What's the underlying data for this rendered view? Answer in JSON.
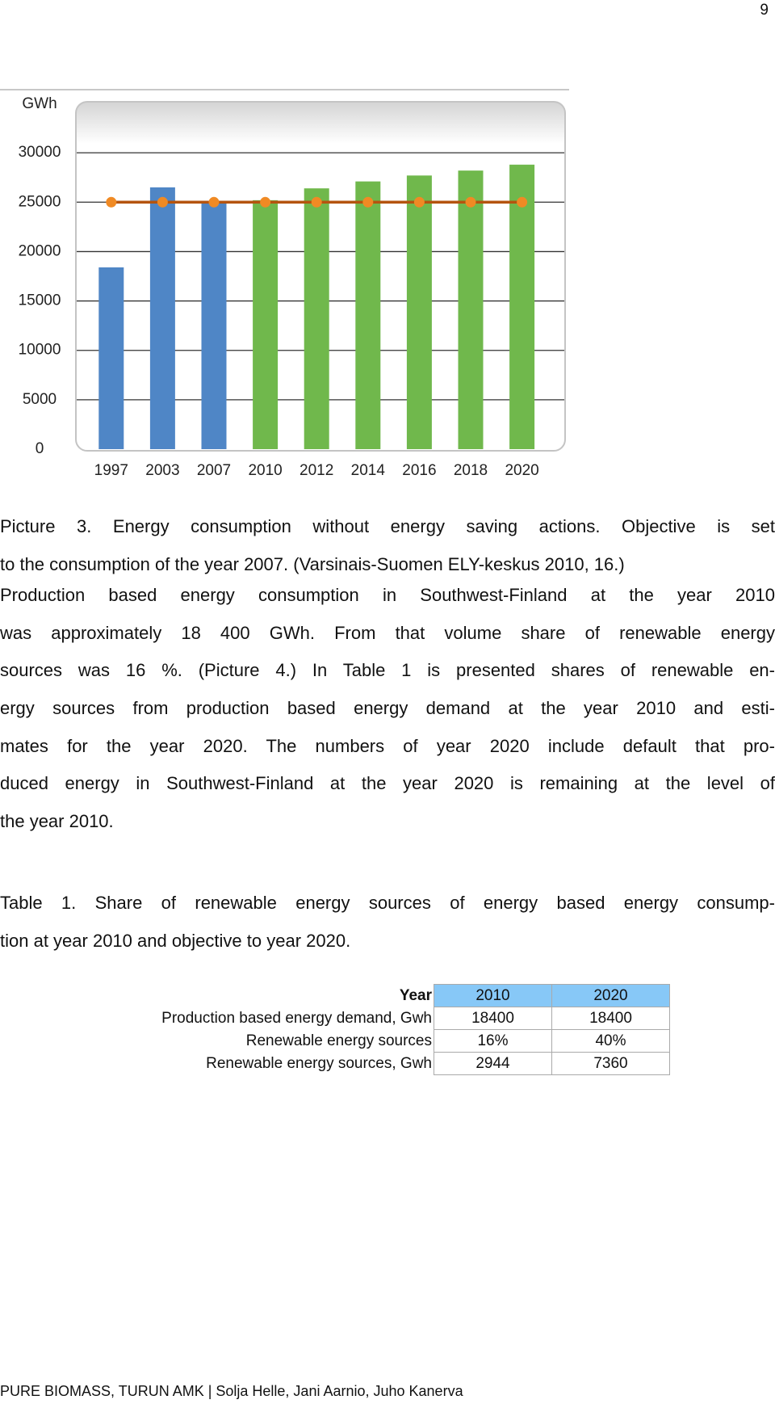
{
  "page_number": "9",
  "chart_data": {
    "type": "bar",
    "y_label": "GWh",
    "categories": [
      "1997",
      "2003",
      "2007",
      "2010",
      "2012",
      "2014",
      "2016",
      "2018",
      "2020"
    ],
    "series": [
      {
        "type": "bar",
        "values": [
          18400,
          26500,
          25000,
          25200,
          26400,
          27100,
          27700,
          28200,
          28800
        ],
        "colors": [
          "#4f86c6",
          "#4f86c6",
          "#4f86c6",
          "#70b84c",
          "#70b84c",
          "#70b84c",
          "#70b84c",
          "#70b84c",
          "#70b84c"
        ]
      },
      {
        "type": "line",
        "color": "#b5540f",
        "marker_color": "#f08a24",
        "values": [
          25000,
          25000,
          25000,
          25000,
          25000,
          25000,
          25000,
          25000,
          25000
        ]
      }
    ],
    "ylim": [
      0,
      35000
    ],
    "yticks": [
      0,
      5000,
      10000,
      15000,
      20000,
      25000,
      30000
    ],
    "grid": true
  },
  "caption": {
    "lines": [
      "Picture 3. Energy consumption without energy saving actions. Objective is set",
      "to the consumption of the year 2007. (Varsinais-Suomen ELY-keskus 2010, 16.)"
    ]
  },
  "paragraph": {
    "lines": [
      "Production based energy consumption in Southwest-Finland at the year 2010",
      "was approximately 18 400 GWh. From that volume share of renewable energy",
      "sources was 16 %. (Picture 4.) In Table 1 is presented shares of renewable en-",
      "ergy sources from production based energy demand at the year 2010 and esti-",
      "mates for the year 2020. The numbers of year 2020 include default that pro-",
      "duced energy in Southwest-Finland at the year 2020 is remaining at the level of",
      "the year 2010."
    ]
  },
  "table_caption": {
    "lines": [
      "Table 1. Share of renewable energy sources of energy based energy consump-",
      "tion at year 2010 and objective to year 2020."
    ]
  },
  "table": {
    "rows": [
      [
        "Year",
        "2010",
        "2020"
      ],
      [
        "Production based energy demand, Gwh",
        18400,
        18400
      ],
      [
        "Renewable energy sources",
        "16%",
        "40%"
      ],
      [
        "Renewable energy sources, Gwh",
        2944,
        7360
      ]
    ]
  },
  "footer": "PURE BIOMASS, TURUN AMK | Solja Helle, Jani Aarnio, Juho Kanerva"
}
